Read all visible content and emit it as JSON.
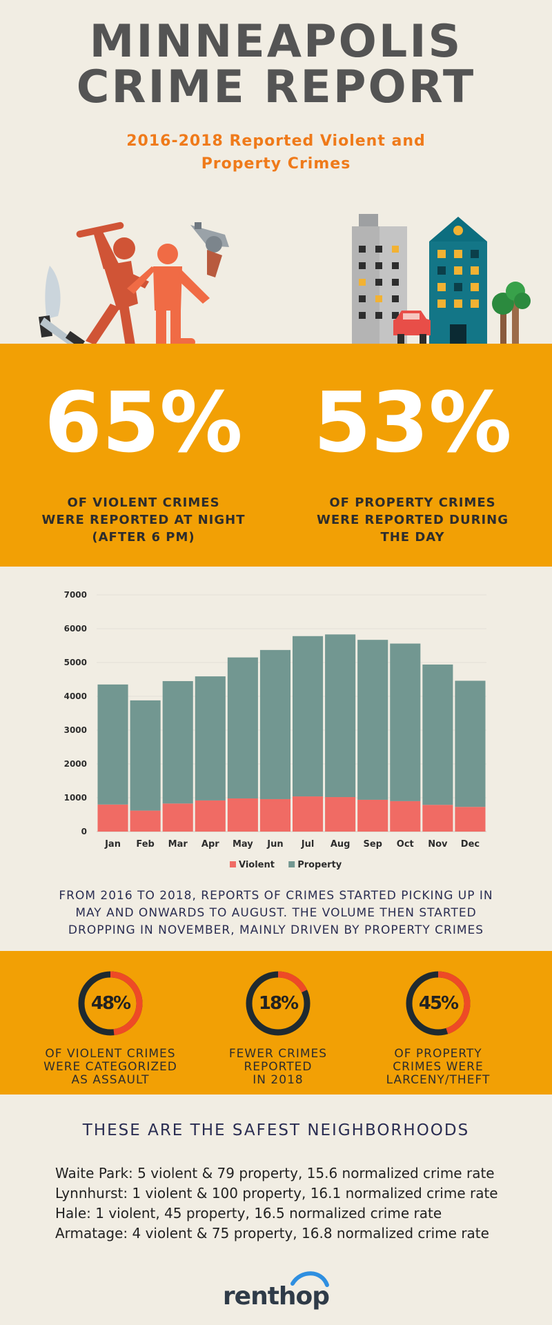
{
  "header": {
    "title_line1": "MINNEAPOLIS",
    "title_line2": "CRIME REPORT",
    "subtitle": "2016-2018 Reported Violent and Property Crimes"
  },
  "stats": [
    {
      "value": "65%",
      "caption_lines": [
        "OF VIOLENT CRIMES",
        "WERE REPORTED AT NIGHT",
        "(AFTER 6 PM)"
      ]
    },
    {
      "value": "53%",
      "caption_lines": [
        "OF PROPERTY CRIMES",
        "WERE REPORTED DURING",
        "THE DAY"
      ]
    }
  ],
  "chart_data": {
    "type": "bar",
    "stacked": true,
    "categories": [
      "Jan",
      "Feb",
      "Mar",
      "Apr",
      "May",
      "Jun",
      "Jul",
      "Aug",
      "Sep",
      "Oct",
      "Nov",
      "Dec"
    ],
    "series": [
      {
        "name": "Violent",
        "color": "#f06b64",
        "values": [
          800,
          620,
          830,
          920,
          980,
          960,
          1040,
          1020,
          940,
          900,
          790,
          730
        ]
      },
      {
        "name": "Property",
        "color": "#729791",
        "values": [
          3550,
          3260,
          3620,
          3670,
          4170,
          4410,
          4740,
          4810,
          4730,
          4660,
          4150,
          3730
        ]
      }
    ],
    "yticks": [
      "0",
      "1000",
      "2000",
      "3000",
      "4000",
      "5000",
      "6000",
      "7000"
    ],
    "ylim": [
      0,
      7000
    ],
    "grid": true,
    "legend": "bottom-center"
  },
  "summary_lines": [
    "FROM 2016 TO 2018, REPORTS OF CRIMES STARTED PICKING UP IN",
    "MAY AND ONWARDS TO AUGUST. THE VOLUME THEN STARTED",
    "DROPPING IN NOVEMBER, MAINLY DRIVEN BY PROPERTY CRIMES"
  ],
  "donuts": [
    {
      "label": "48%",
      "fraction": 0.48,
      "caption_lines": [
        "OF VIOLENT CRIMES",
        "WERE CATEGORIZED",
        "AS ASSAULT"
      ]
    },
    {
      "label": "18%",
      "fraction": 0.18,
      "caption_lines": [
        "FEWER CRIMES",
        "REPORTED",
        "IN 2018"
      ]
    },
    {
      "label": "45%",
      "fraction": 0.45,
      "caption_lines": [
        "OF PROPERTY",
        "CRIMES WERE",
        "LARCENY/THEFT"
      ]
    }
  ],
  "safest": {
    "title": "THESE ARE THE SAFEST NEIGHBORHOODS",
    "items": [
      "Waite Park: 5 violent & 79 property, 15.6 normalized crime rate",
      "Lynnhurst: 1 violent & 100 property, 16.1 normalized crime rate",
      "Hale: 1 violent, 45 property, 16.5 normalized crime rate",
      "Armatage: 4 violent & 75 property, 16.8 normalized crime rate"
    ]
  },
  "logo": {
    "text": "renthop"
  },
  "colors": {
    "orange": "#f2a005",
    "accent": "#ef7a1a",
    "navy": "#2a2d52",
    "violent": "#f06b64",
    "property": "#729791",
    "ring": "#1f2a30",
    "ring_fill": "#ee4a26"
  },
  "icons": [
    "knife-icon",
    "attacker-icon",
    "victim-icon",
    "revolver-icon",
    "buildings-icon",
    "car-icon",
    "trees-icon"
  ]
}
